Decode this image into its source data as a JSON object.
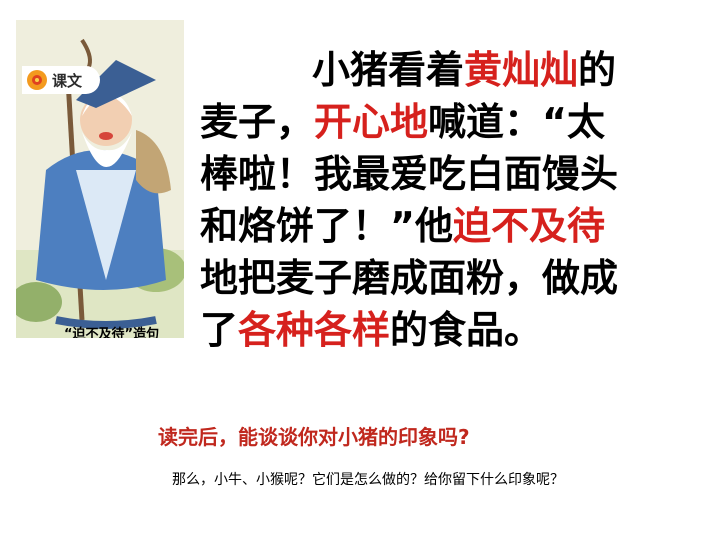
{
  "illustration": {
    "badge_label": "课文",
    "caption": "“迫不及待”造句",
    "icons": [
      "flower-icon",
      "old-farmer-figure"
    ]
  },
  "passage": {
    "lines": [
      [
        {
          "t": "小猪看着",
          "h": false
        },
        {
          "t": "黄灿灿",
          "h": true
        },
        {
          "t": "的",
          "h": false
        }
      ],
      [
        {
          "t": "麦子，",
          "h": false
        },
        {
          "t": "开心地",
          "h": true
        },
        {
          "t": "喊道：“太",
          "h": false
        }
      ],
      [
        {
          "t": "棒啦！我最爱吃白面馒头",
          "h": false
        }
      ],
      [
        {
          "t": "和烙饼了！”他",
          "h": false
        },
        {
          "t": "迫不及待",
          "h": true
        }
      ],
      [
        {
          "t": "地把麦子磨成面粉，做成",
          "h": false
        }
      ],
      [
        {
          "t": "了",
          "h": false
        },
        {
          "t": "各种各样",
          "h": true
        },
        {
          "t": "的食品。",
          "h": false
        }
      ]
    ],
    "highlight_color": "#d6211d"
  },
  "question": "读完后，能谈谈你对小猪的印象吗?",
  "followup": "那么，小牛、小猴呢？它们是怎么做的？给你留下什么印象呢？"
}
